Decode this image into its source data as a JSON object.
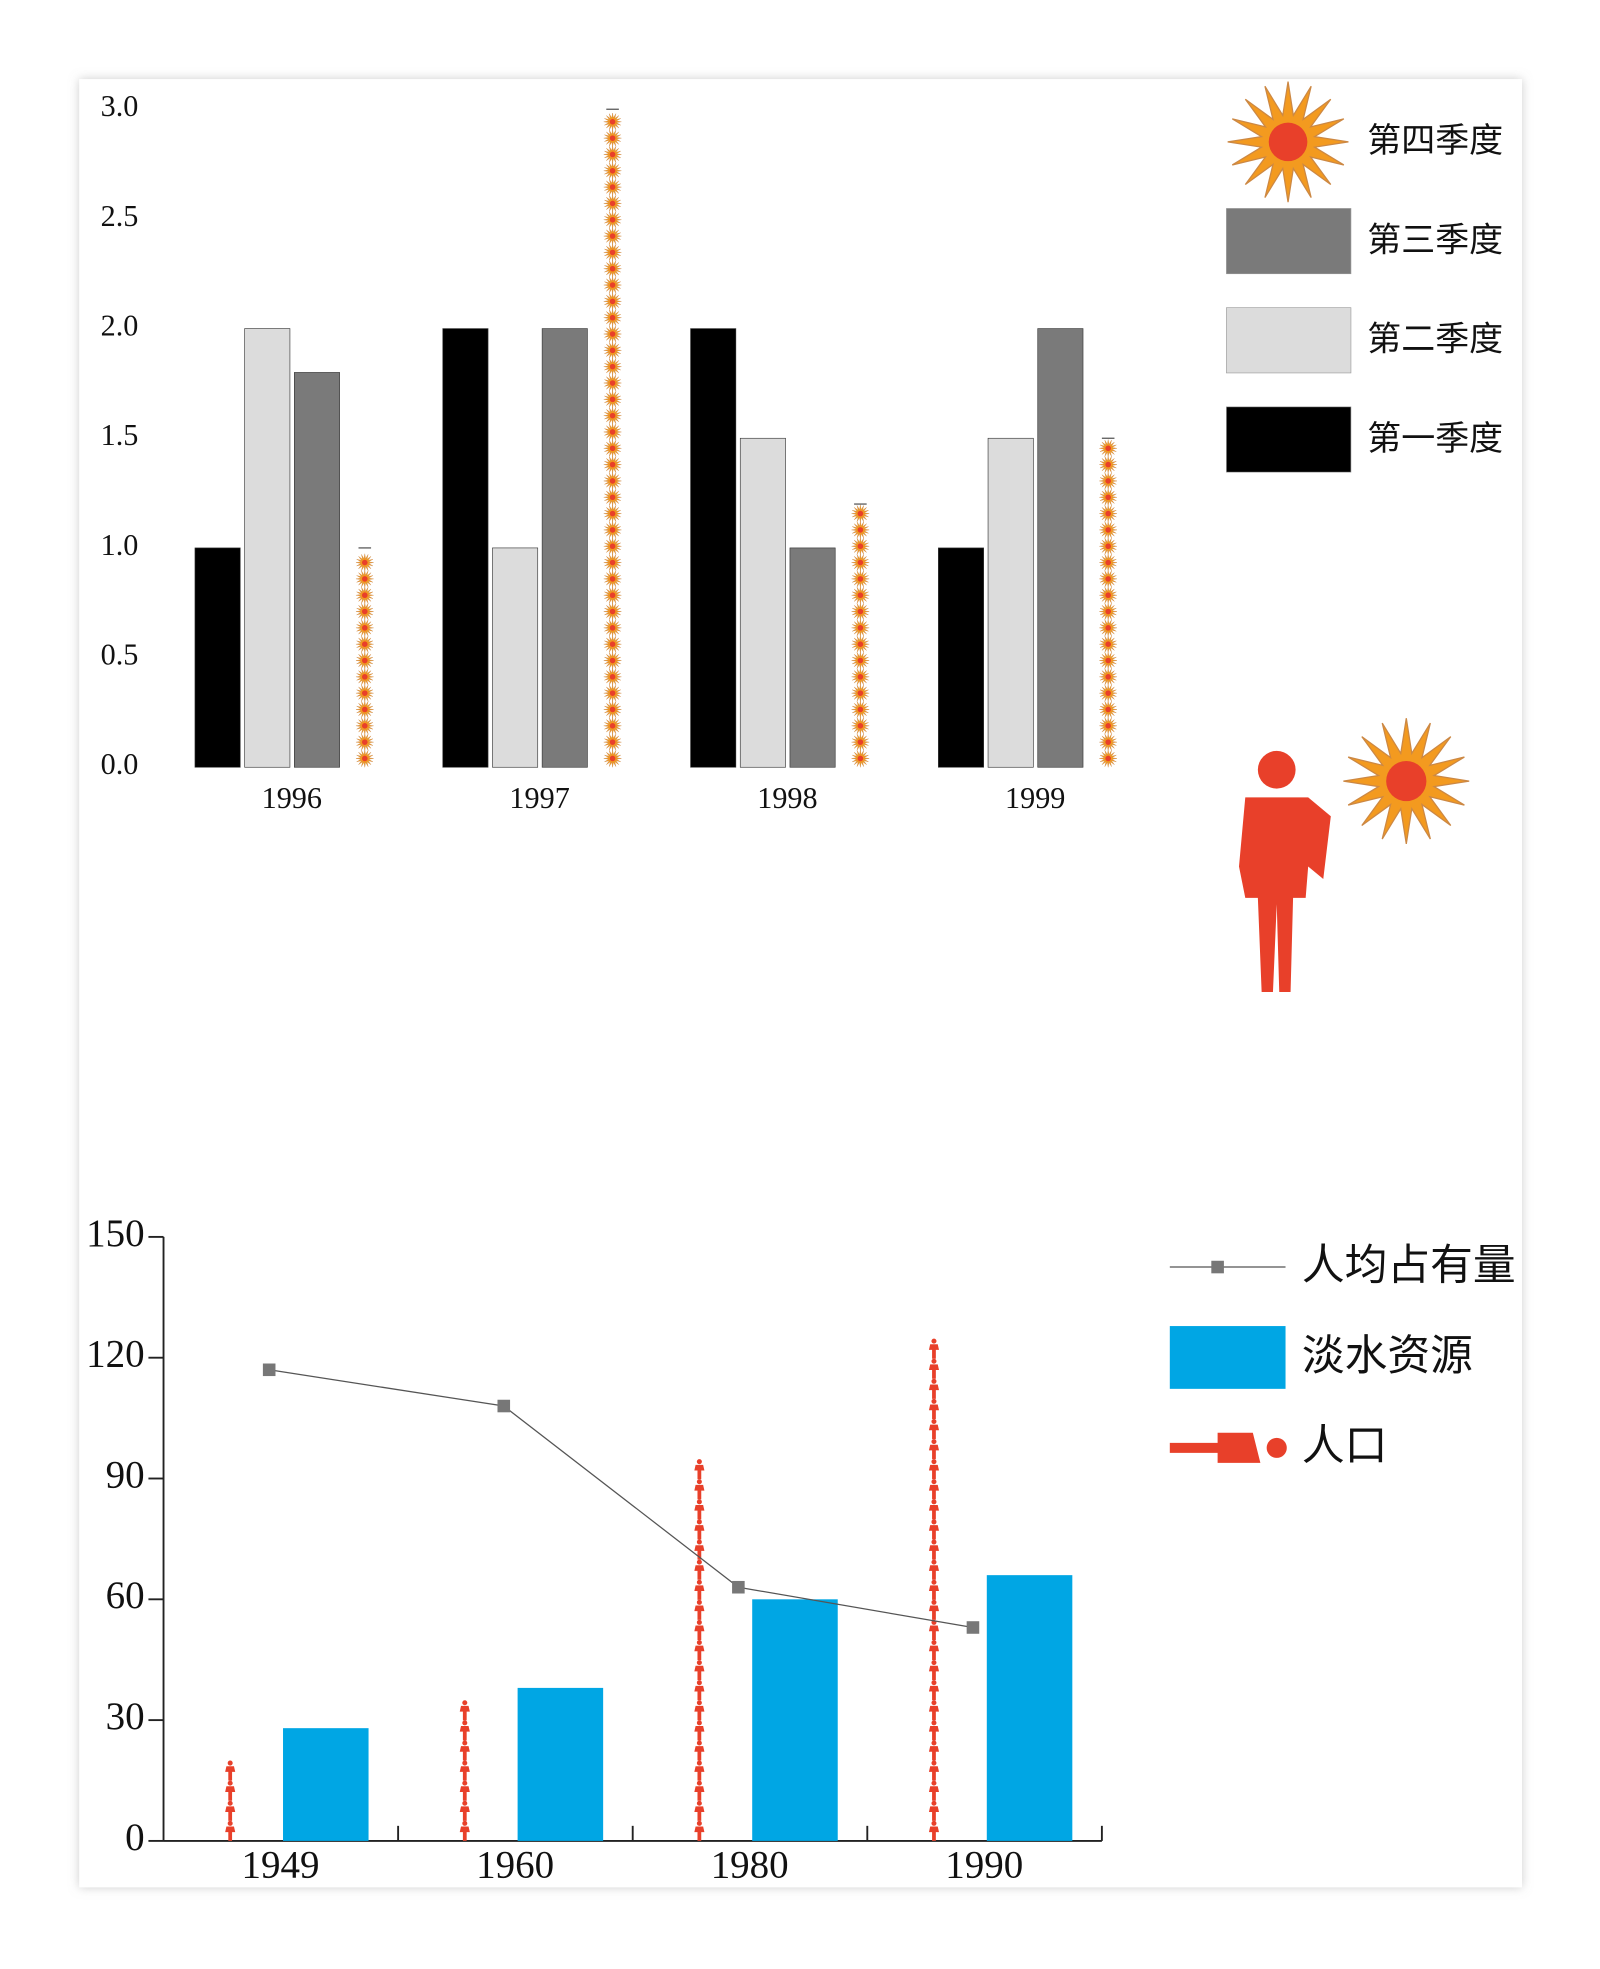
{
  "chart_data": [
    {
      "type": "bar",
      "categories": [
        "1996",
        "1997",
        "1998",
        "1999"
      ],
      "series": [
        {
          "name": "第一季度",
          "color": "#000000",
          "kind": "bar",
          "values": [
            1.0,
            2.0,
            2.0,
            1.0
          ]
        },
        {
          "name": "第二季度",
          "color": "#dcdcdc",
          "kind": "bar",
          "values": [
            2.0,
            1.0,
            1.5,
            1.5
          ]
        },
        {
          "name": "第三季度",
          "color": "#7a7a7a",
          "kind": "bar",
          "values": [
            1.8,
            2.0,
            1.0,
            2.0
          ]
        },
        {
          "name": "第四季度",
          "color": "#f39a1f",
          "kind": "sun",
          "values": [
            1.0,
            3.0,
            1.2,
            1.5
          ]
        }
      ],
      "ylim": [
        0,
        3
      ],
      "yticks": [
        {
          "value": 0,
          "label": "0.0"
        },
        {
          "value": 0.5,
          "label": "0.5"
        },
        {
          "value": 1,
          "label": "1.0"
        },
        {
          "value": 1.5,
          "label": "1.5"
        },
        {
          "value": 2,
          "label": "2.0"
        },
        {
          "value": 2.5,
          "label": "2.5"
        },
        {
          "value": 3,
          "label": "3.0"
        }
      ]
    },
    {
      "type": "combo",
      "categories": [
        "1949",
        "1960",
        "1980",
        "1990"
      ],
      "series": [
        {
          "name": "人均占有量",
          "color": "#555555",
          "kind": "line",
          "values": [
            117,
            108,
            63,
            53
          ]
        },
        {
          "name": "淡水资源",
          "color": "#00a6e4",
          "kind": "bar",
          "values": [
            28,
            38,
            60,
            66
          ]
        },
        {
          "name": "人口",
          "color": "#e8402a",
          "kind": "person",
          "values": [
            24,
            35,
            95,
            125
          ]
        }
      ],
      "ylim": [
        0,
        150
      ],
      "yticks": [
        0,
        30,
        60,
        90,
        120,
        150
      ]
    }
  ]
}
